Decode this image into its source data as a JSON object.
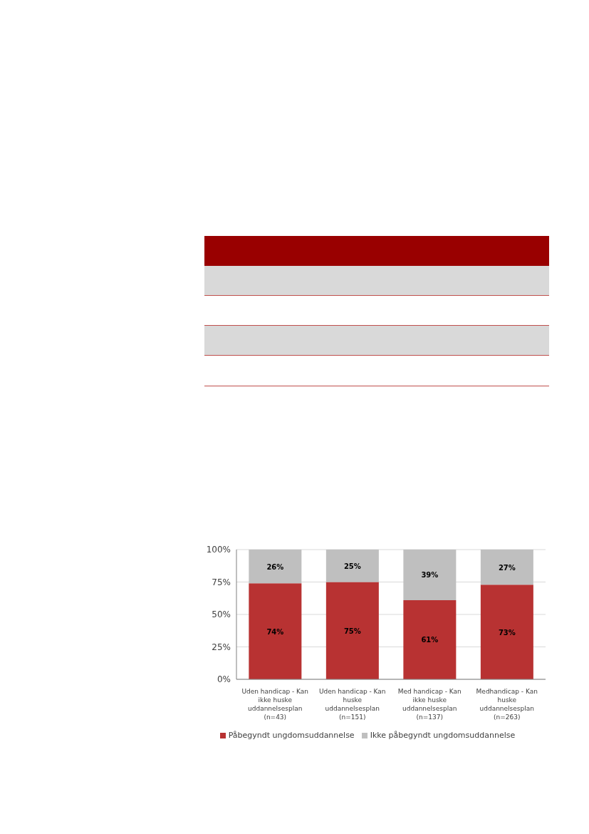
{
  "chart_data": {
    "type": "bar",
    "stacked": true,
    "categories": [
      "Uden handicap - Kan ikke huske uddannelsesplan (n=43)",
      "Uden handicap - Kan huske uddannelsesplan (n=151)",
      "Med handicap - Kan ikke huske uddannelsesplan (n=137)",
      "Medhandicap - Kan huske uddannelsesplan (n=263)"
    ],
    "series": [
      {
        "name": "Påbegyndt ungdomsuddannelse",
        "color": "#b83232",
        "values": [
          74,
          75,
          61,
          73
        ],
        "value_labels": [
          "74%",
          "75%",
          "61%",
          "73%"
        ]
      },
      {
        "name": "Ikke påbegyndt ungdomsuddannelse",
        "color": "#bfbfbf",
        "values": [
          26,
          25,
          39,
          27
        ],
        "value_labels": [
          "26%",
          "25%",
          "39%",
          "27%"
        ]
      }
    ],
    "ylim": [
      0,
      100
    ],
    "yticks": [
      {
        "value": 0,
        "label": "0%"
      },
      {
        "value": 25,
        "label": "25%"
      },
      {
        "value": 50,
        "label": "50%"
      },
      {
        "value": 75,
        "label": "75%"
      },
      {
        "value": 100,
        "label": "100%"
      }
    ],
    "grid": "y",
    "legend": "bottom"
  }
}
